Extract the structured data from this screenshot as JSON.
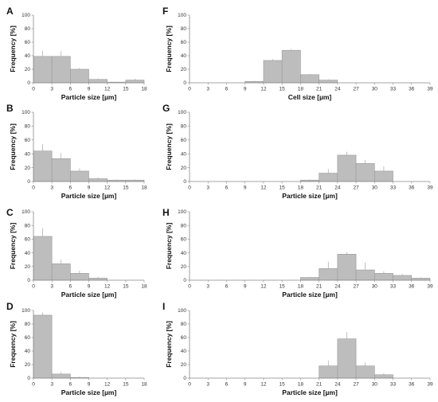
{
  "chart_data": [
    {
      "panel": "A",
      "type": "bar",
      "xlabel": "Particle size [µm]",
      "ylabel": "Frequency [%]",
      "xlim": [
        0,
        18
      ],
      "ylim": [
        0,
        100
      ],
      "xticks": [
        0,
        3,
        6,
        9,
        12,
        15,
        18
      ],
      "yticks": [
        0,
        20,
        40,
        60,
        80,
        100
      ],
      "bin_width": 3,
      "x": [
        0,
        3,
        6,
        9,
        12,
        15
      ],
      "values": [
        39,
        39,
        20,
        5,
        1,
        4
      ],
      "errors": [
        8,
        8,
        2,
        1,
        0,
        2
      ]
    },
    {
      "panel": "B",
      "type": "bar",
      "xlabel": "Particle size [µm]",
      "ylabel": "Frequency [%]",
      "xlim": [
        0,
        18
      ],
      "ylim": [
        0,
        100
      ],
      "xticks": [
        0,
        3,
        6,
        9,
        12,
        15,
        18
      ],
      "yticks": [
        0,
        20,
        40,
        60,
        80,
        100
      ],
      "bin_width": 3,
      "x": [
        0,
        3,
        6,
        9,
        12,
        15
      ],
      "values": [
        44,
        33,
        15,
        4,
        2,
        2
      ],
      "errors": [
        10,
        8,
        4,
        2,
        1,
        1
      ]
    },
    {
      "panel": "C",
      "type": "bar",
      "xlabel": "Particle size [µm]",
      "ylabel": "Frequency [%]",
      "xlim": [
        0,
        18
      ],
      "ylim": [
        0,
        100
      ],
      "xticks": [
        0,
        3,
        6,
        9,
        12,
        15,
        18
      ],
      "yticks": [
        0,
        20,
        40,
        60,
        80,
        100
      ],
      "bin_width": 3,
      "x": [
        0,
        3,
        6,
        9
      ],
      "values": [
        64,
        24,
        10,
        3
      ],
      "errors": [
        12,
        6,
        4,
        2
      ]
    },
    {
      "panel": "D",
      "type": "bar",
      "xlabel": "Particle size [µm]",
      "ylabel": "Frequency [%]",
      "xlim": [
        0,
        18
      ],
      "ylim": [
        0,
        100
      ],
      "xticks": [
        0,
        3,
        6,
        9,
        12,
        15,
        18
      ],
      "yticks": [
        0,
        20,
        40,
        60,
        80,
        100
      ],
      "bin_width": 3,
      "x": [
        0,
        3,
        6
      ],
      "values": [
        93,
        6,
        1
      ],
      "errors": [
        4,
        3,
        1
      ]
    },
    {
      "panel": "F",
      "type": "bar",
      "xlabel": "Cell size [µm]",
      "ylabel": "Frequency [%]",
      "xlim": [
        0,
        39
      ],
      "ylim": [
        0,
        100
      ],
      "xticks": [
        0,
        3,
        6,
        9,
        12,
        15,
        18,
        21,
        24,
        27,
        30,
        33,
        36,
        39
      ],
      "yticks": [
        0,
        20,
        40,
        60,
        80,
        100
      ],
      "bin_width": 3,
      "x": [
        9,
        12,
        15,
        18,
        21
      ],
      "values": [
        2,
        33,
        48,
        12,
        4
      ],
      "errors": [
        1,
        2,
        2,
        1,
        1
      ]
    },
    {
      "panel": "G",
      "type": "bar",
      "xlabel": "Particle size [µm]",
      "ylabel": "Frequency [%]",
      "xlim": [
        0,
        39
      ],
      "ylim": [
        0,
        100
      ],
      "xticks": [
        0,
        3,
        6,
        9,
        12,
        15,
        18,
        21,
        24,
        27,
        30,
        33,
        36,
        39
      ],
      "yticks": [
        0,
        20,
        40,
        60,
        80,
        100
      ],
      "bin_width": 3,
      "x": [
        18,
        21,
        24,
        27,
        30
      ],
      "values": [
        2,
        12,
        38,
        26,
        15
      ],
      "errors": [
        1,
        6,
        5,
        5,
        7
      ]
    },
    {
      "panel": "H",
      "type": "bar",
      "xlabel": "Particle size [µm]",
      "ylabel": "Frequency [%]",
      "xlim": [
        0,
        39
      ],
      "ylim": [
        0,
        100
      ],
      "xticks": [
        0,
        3,
        6,
        9,
        12,
        15,
        18,
        21,
        24,
        27,
        30,
        33,
        36,
        39
      ],
      "yticks": [
        0,
        20,
        40,
        60,
        80,
        100
      ],
      "bin_width": 3,
      "x": [
        18,
        21,
        24,
        27,
        30,
        33,
        36
      ],
      "values": [
        4,
        17,
        38,
        15,
        10,
        7,
        3
      ],
      "errors": [
        1,
        10,
        3,
        11,
        3,
        2,
        1
      ]
    },
    {
      "panel": "I",
      "type": "bar",
      "xlabel": "Particle size [µm]",
      "ylabel": "Frequency [%]",
      "xlim": [
        0,
        39
      ],
      "ylim": [
        0,
        100
      ],
      "xticks": [
        0,
        3,
        6,
        9,
        12,
        15,
        18,
        21,
        24,
        27,
        30,
        33,
        36,
        39
      ],
      "yticks": [
        0,
        20,
        40,
        60,
        80,
        100
      ],
      "bin_width": 3,
      "x": [
        21,
        24,
        27,
        30
      ],
      "values": [
        18,
        58,
        18,
        5
      ],
      "errors": [
        8,
        10,
        5,
        2
      ]
    }
  ]
}
